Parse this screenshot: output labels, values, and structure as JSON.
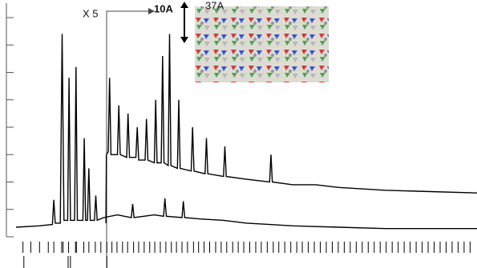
{
  "chart_data": {
    "type": "line",
    "annotations": {
      "scale": "X 5",
      "spacing_a": "10A",
      "spacing_b": "37A"
    },
    "xlim": [
      0,
      100
    ],
    "ylim": [
      0,
      8
    ],
    "yticks": [
      0,
      1,
      2,
      3,
      4,
      5,
      6,
      7,
      8
    ],
    "series": [
      {
        "color": "#000000",
        "x": [
          0,
          5,
          7.9,
          8.2,
          8.5,
          9.6,
          10,
          10.4,
          11.2,
          11.5,
          11.8,
          12.7,
          13,
          13.3,
          14.5,
          14.8,
          15.1,
          15.5,
          15.8,
          16.1,
          17,
          17.3,
          17.6,
          19,
          22,
          25,
          25.3,
          25.6,
          30,
          32,
          32.3,
          32.6,
          36,
          36.3,
          36.6,
          40,
          45,
          50,
          55,
          60,
          70,
          80,
          90,
          100
        ],
        "values": [
          0.35,
          0.4,
          0.45,
          1.35,
          0.5,
          0.5,
          7.4,
          0.6,
          0.6,
          5.8,
          0.6,
          0.6,
          6.2,
          0.6,
          0.6,
          3.6,
          0.6,
          0.6,
          2.5,
          0.6,
          0.6,
          1.5,
          0.6,
          0.7,
          0.8,
          0.7,
          1.2,
          0.7,
          0.8,
          0.75,
          1.4,
          0.75,
          0.7,
          1.3,
          0.7,
          0.65,
          0.6,
          0.5,
          0.45,
          0.4,
          0.35,
          0.3,
          0.3,
          0.3
        ]
      },
      {
        "color": "#000000",
        "x": [
          19.5,
          19.6,
          20,
          20.3,
          20.6,
          22,
          22.3,
          22.6,
          24,
          24.3,
          24.6,
          26,
          26.3,
          26.6,
          28,
          28.3,
          28.6,
          30,
          30.3,
          30.6,
          31.5,
          31.8,
          32.1,
          33,
          33.3,
          33.6,
          35,
          35.3,
          35.6,
          38,
          38.3,
          38.6,
          41,
          41.3,
          41.6,
          45,
          45.3,
          45.6,
          50,
          55,
          55.3,
          55.6,
          60,
          65,
          70,
          80,
          90,
          100
        ],
        "values": [
          0.5,
          3.0,
          3.1,
          5.8,
          3.0,
          3.0,
          4.8,
          3.0,
          2.9,
          4.5,
          2.9,
          2.9,
          4.0,
          2.8,
          2.8,
          4.3,
          2.8,
          2.7,
          5.0,
          2.7,
          2.7,
          6.6,
          2.7,
          2.6,
          7.4,
          2.6,
          2.5,
          5.0,
          2.5,
          2.4,
          4.0,
          2.4,
          2.3,
          3.6,
          2.3,
          2.2,
          3.3,
          2.2,
          2.1,
          2.0,
          3.0,
          2.0,
          1.9,
          1.9,
          1.8,
          1.7,
          1.65,
          1.6
        ]
      }
    ],
    "reflections": [
      1.5,
      3.2,
      5.1,
      7.0,
      8.2,
      9.9,
      10.2,
      11.4,
      12.9,
      13.1,
      14.7,
      15.8,
      17.2,
      18.4,
      19.7,
      20.8,
      21.9,
      23.1,
      24.2,
      25.5,
      26.6,
      27.8,
      29.0,
      30.1,
      31.3,
      32.5,
      33.7,
      34.8,
      36.0,
      37.2,
      38.5,
      39.6,
      40.8,
      42.0,
      43.3,
      44.5,
      45.7,
      47.0,
      48.2,
      49.4,
      50.7,
      52.0,
      53.2,
      54.5,
      55.8,
      57.0,
      58.3,
      59.6,
      60.9,
      62.1,
      63.4,
      64.7,
      66.0,
      67.3,
      68.6,
      69.9,
      71.2,
      72.5,
      73.8,
      75.1,
      76.4,
      77.7,
      79.0,
      80.3,
      81.6,
      82.9,
      84.2,
      85.5,
      86.8,
      88.1,
      89.4,
      90.7,
      92.0,
      93.3,
      94.6,
      95.9,
      97.2,
      98.5
    ],
    "reflections2": [
      1.7,
      11.3,
      11.8,
      19.7
    ]
  }
}
